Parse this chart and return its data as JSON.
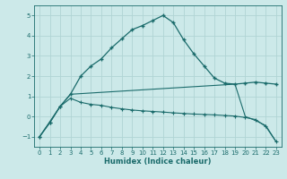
{
  "xlabel": "Humidex (Indice chaleur)",
  "background_color": "#cce9e9",
  "grid_color": "#b0d4d4",
  "line_color": "#1a6b6b",
  "xlim": [
    -0.5,
    23.5
  ],
  "ylim": [
    -1.5,
    5.5
  ],
  "yticks": [
    -1,
    0,
    1,
    2,
    3,
    4,
    5
  ],
  "xticks": [
    0,
    1,
    2,
    3,
    4,
    5,
    6,
    7,
    8,
    9,
    10,
    11,
    12,
    13,
    14,
    15,
    16,
    17,
    18,
    19,
    20,
    21,
    22,
    23
  ],
  "series1_x": [
    0,
    1,
    2,
    3,
    4,
    5,
    6,
    7,
    8,
    9,
    10,
    11,
    12,
    13,
    14,
    15,
    16,
    17,
    18,
    19,
    20,
    21,
    22,
    23
  ],
  "series1_y": [
    -1.0,
    -0.3,
    0.5,
    1.1,
    2.0,
    2.5,
    2.85,
    3.4,
    3.85,
    4.3,
    4.5,
    4.75,
    5.0,
    4.65,
    3.8,
    3.1,
    2.5,
    1.9,
    1.65,
    1.6,
    1.65,
    1.7,
    1.65,
    1.6
  ],
  "series2_x": [
    0,
    1,
    2,
    3,
    4,
    5,
    6,
    7,
    8,
    9,
    10,
    11,
    12,
    13,
    14,
    15,
    16,
    17,
    18,
    19,
    20,
    21,
    22,
    23
  ],
  "series2_y": [
    -1.0,
    -0.3,
    0.5,
    0.9,
    0.7,
    0.6,
    0.55,
    0.45,
    0.38,
    0.32,
    0.28,
    0.25,
    0.22,
    0.18,
    0.15,
    0.12,
    0.1,
    0.08,
    0.05,
    0.02,
    -0.05,
    -0.15,
    -0.5,
    -1.25
  ],
  "series3_x": [
    0,
    2,
    3,
    19,
    20,
    21,
    22,
    23
  ],
  "series3_y": [
    -1.0,
    0.5,
    1.1,
    1.6,
    0.0,
    -0.2,
    -0.45,
    -1.25
  ]
}
